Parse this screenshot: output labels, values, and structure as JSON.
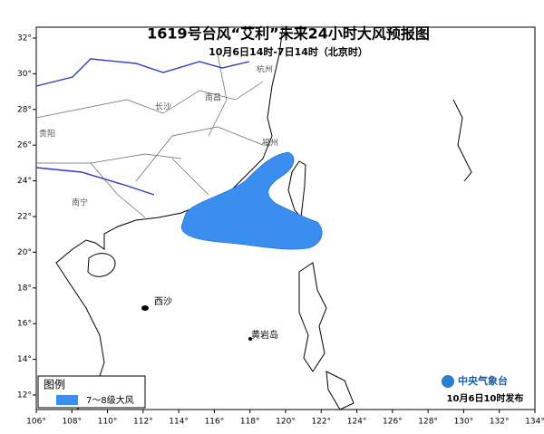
{
  "title": "1619号台风“艾利”未来24小时大风预报图",
  "subtitle": "10月6日14时-7日14时（北京时）",
  "lon_ticks": [
    "106°",
    "108°",
    "110°",
    "112°",
    "114°",
    "116°",
    "118°",
    "120°",
    "122°",
    "124°",
    "126°",
    "128°",
    "130°",
    "132°",
    "134°"
  ],
  "lat_ticks": [
    "12°",
    "14°",
    "16°",
    "18°",
    "20°",
    "22°",
    "24°",
    "26°",
    "28°",
    "30°",
    "32°"
  ],
  "places": [
    "贵阳",
    "长沙",
    "南昌",
    "杭州",
    "福州",
    "南宁",
    "西沙",
    "黄岩岛"
  ],
  "legend": {
    "title": "图例",
    "item": "7～8级大风"
  },
  "footer": {
    "agency": "中央气象台",
    "issued": "10月6日10时发布"
  }
}
